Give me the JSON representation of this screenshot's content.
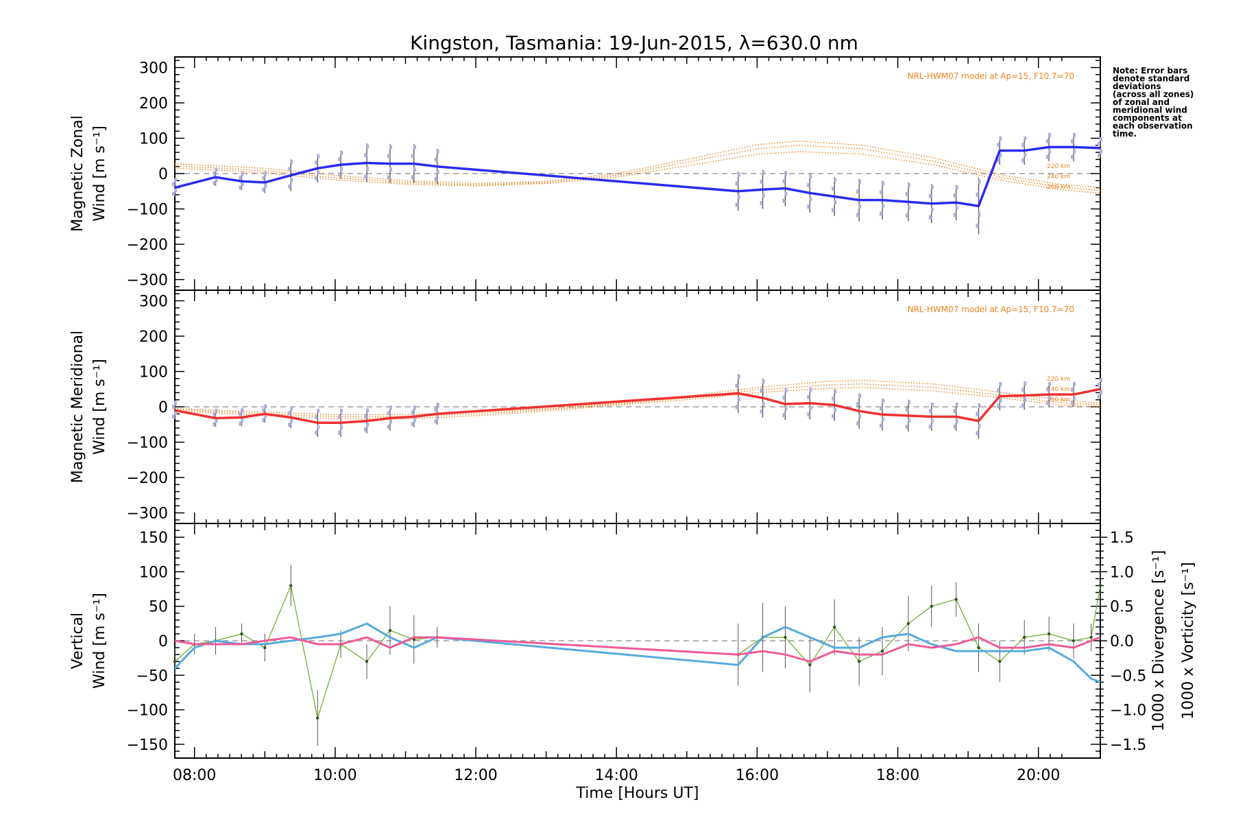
{
  "title": "Kingston, Tasmania: 19-Jun-2015, λ=630.0 nm",
  "note": [
    "Note: Error bars",
    "denote standard",
    "deviations",
    "(across all zones)",
    "of zonal and",
    "meridional wind",
    "components at",
    "each observation",
    "time."
  ],
  "colors": {
    "zonal": "#2b2bf0",
    "meridional": "#f03030",
    "vertical": "#66aa22",
    "divergence": "#55aadd",
    "vorticity": "#f05a96",
    "model": "#f0821e",
    "errorbar": "#555555",
    "scatter": "#aab0e0",
    "zero": "#888888"
  },
  "chart_data": [
    {
      "type": "line",
      "panel": "zonal",
      "ylabel": [
        "Magnetic Zonal",
        "Wind [m s⁻¹]"
      ],
      "ylim": [
        -330,
        330
      ],
      "yticks": [
        300,
        200,
        100,
        0,
        -100,
        -200,
        -300
      ],
      "model_label": "NRL-HWM07 model at Ap=15, F10.7=70",
      "altitude_labels": [
        "220 km",
        "240 km",
        "260 km"
      ],
      "series": [
        {
          "x": [
            7.72,
            8.3,
            8.67,
            9.0,
            9.37,
            9.75,
            10.08,
            10.45,
            10.78,
            11.12,
            11.45,
            15.73,
            16.08,
            16.4,
            16.75,
            17.1,
            17.45,
            17.78,
            18.15,
            18.48,
            18.83,
            19.15,
            19.45,
            19.8,
            20.15,
            20.5,
            20.88
          ],
          "y": [
            -40,
            -10,
            -22,
            -25,
            -5,
            15,
            25,
            30,
            28,
            28,
            20,
            -50,
            -45,
            -42,
            -55,
            -65,
            -75,
            -75,
            -80,
            -85,
            -82,
            -92,
            65,
            65,
            75,
            75,
            72
          ],
          "err": [
            25,
            25,
            25,
            30,
            45,
            40,
            40,
            55,
            55,
            55,
            50,
            55,
            55,
            50,
            55,
            55,
            60,
            55,
            55,
            55,
            50,
            80,
            40,
            40,
            40,
            40,
            30
          ]
        }
      ],
      "model": [
        {
          "x": [
            7.72,
            9.0,
            10.0,
            11.0,
            12.0,
            13.0,
            14.0,
            15.0,
            16.0,
            16.6,
            17.5,
            18.5,
            19.5,
            20.3,
            20.88
          ],
          "y": [
            28,
            15,
            -5,
            -20,
            -28,
            -22,
            0,
            40,
            82,
            92,
            80,
            45,
            -5,
            -30,
            -40
          ]
        },
        {
          "x": [
            7.72,
            9.0,
            10.0,
            11.0,
            12.0,
            13.0,
            14.0,
            15.0,
            16.0,
            16.6,
            17.5,
            18.5,
            19.5,
            20.3,
            20.88
          ],
          "y": [
            22,
            8,
            -12,
            -25,
            -32,
            -25,
            -5,
            32,
            70,
            80,
            70,
            35,
            -12,
            -38,
            -48
          ]
        },
        {
          "x": [
            7.72,
            9.0,
            10.0,
            11.0,
            12.0,
            13.0,
            14.0,
            15.0,
            16.0,
            16.6,
            17.5,
            18.5,
            19.5,
            20.3,
            20.88
          ],
          "y": [
            16,
            2,
            -18,
            -30,
            -35,
            -28,
            -10,
            22,
            55,
            62,
            55,
            25,
            -20,
            -45,
            -56
          ]
        }
      ]
    },
    {
      "type": "line",
      "panel": "meridional",
      "ylabel": [
        "Magnetic Meridional",
        "Wind [m s⁻¹]"
      ],
      "ylim": [
        -330,
        330
      ],
      "yticks": [
        300,
        200,
        100,
        0,
        -100,
        -200,
        -300
      ],
      "model_label": "NRL-HWM07 model at Ap=15, F10.7=70",
      "altitude_labels": [
        "220 km",
        "240 km",
        "260 km"
      ],
      "series": [
        {
          "x": [
            7.72,
            8.3,
            8.67,
            9.0,
            9.37,
            9.75,
            10.08,
            10.45,
            10.78,
            11.12,
            11.45,
            15.73,
            16.08,
            16.4,
            16.75,
            17.1,
            17.45,
            17.78,
            18.15,
            18.48,
            18.83,
            19.15,
            19.45,
            19.8,
            20.15,
            20.5,
            20.88
          ],
          "y": [
            -10,
            -32,
            -30,
            -20,
            -30,
            -45,
            -45,
            -40,
            -32,
            -28,
            -20,
            38,
            25,
            8,
            10,
            5,
            -12,
            -22,
            -25,
            -28,
            -28,
            -40,
            30,
            32,
            35,
            35,
            50
          ],
          "err": [
            25,
            25,
            25,
            25,
            30,
            40,
            40,
            35,
            35,
            30,
            30,
            55,
            55,
            45,
            45,
            45,
            50,
            45,
            45,
            40,
            40,
            50,
            40,
            40,
            35,
            35,
            30
          ]
        }
      ],
      "model": [
        {
          "x": [
            7.72,
            9.0,
            10.0,
            11.0,
            12.0,
            13.0,
            14.0,
            15.0,
            16.0,
            17.0,
            17.5,
            18.5,
            19.5,
            20.3,
            20.88
          ],
          "y": [
            -5,
            -15,
            -22,
            -22,
            -15,
            -5,
            10,
            30,
            55,
            72,
            75,
            65,
            40,
            20,
            10
          ]
        },
        {
          "x": [
            7.72,
            9.0,
            10.0,
            11.0,
            12.0,
            13.0,
            14.0,
            15.0,
            16.0,
            17.0,
            17.5,
            18.5,
            19.5,
            20.3,
            20.88
          ],
          "y": [
            -8,
            -20,
            -28,
            -28,
            -20,
            -8,
            8,
            25,
            48,
            62,
            65,
            55,
            32,
            12,
            5
          ]
        },
        {
          "x": [
            7.72,
            9.0,
            10.0,
            11.0,
            12.0,
            13.0,
            14.0,
            15.0,
            16.0,
            17.0,
            17.5,
            18.5,
            19.5,
            20.3,
            20.88
          ],
          "y": [
            -12,
            -25,
            -34,
            -34,
            -25,
            -12,
            5,
            20,
            40,
            52,
            55,
            45,
            25,
            5,
            0
          ]
        }
      ]
    },
    {
      "type": "line",
      "panel": "vertical",
      "xlabel": "Time [Hours UT]",
      "ylabel": [
        "Vertical",
        "Wind [m s⁻¹]"
      ],
      "ylim": [
        -170,
        170
      ],
      "yticks": [
        150,
        100,
        50,
        0,
        -50,
        -100,
        -150
      ],
      "y2label_divergence": "1000 x Divergence [s⁻¹]",
      "y2label_vorticity": "1000 x Vorticity [s⁻¹]",
      "y2lim": [
        -1.7,
        1.7
      ],
      "y2ticks": [
        1.5,
        1.0,
        0.5,
        0.0,
        -0.5,
        -1.0,
        -1.5
      ],
      "xlim": [
        7.72,
        20.88
      ],
      "xticks": [
        "08:00",
        "10:00",
        "12:00",
        "14:00",
        "16:00",
        "18:00",
        "20:00"
      ],
      "xtick_values": [
        8,
        10,
        12,
        14,
        16,
        18,
        20
      ],
      "series": [
        {
          "name": "Vertical Wind",
          "x": [
            7.72,
            8.0,
            8.3,
            8.67,
            9.0,
            9.37,
            9.75,
            10.08,
            10.45,
            10.78,
            11.12,
            11.45,
            15.73,
            16.08,
            16.4,
            16.75,
            17.1,
            17.45,
            17.78,
            18.15,
            18.48,
            18.83,
            19.15,
            19.45,
            19.8,
            20.15,
            20.5,
            20.75,
            20.88
          ],
          "y": [
            -30,
            -5,
            0,
            10,
            -10,
            80,
            -112,
            -5,
            -30,
            15,
            2,
            5,
            -20,
            5,
            5,
            -35,
            20,
            -30,
            -15,
            25,
            50,
            60,
            -10,
            -30,
            5,
            10,
            0,
            5,
            80
          ],
          "err": [
            20,
            15,
            20,
            15,
            20,
            30,
            40,
            20,
            25,
            35,
            35,
            15,
            45,
            50,
            45,
            40,
            40,
            35,
            35,
            40,
            30,
            25,
            35,
            30,
            25,
            25,
            25,
            20,
            30
          ]
        },
        {
          "name": "Divergence",
          "x": [
            7.72,
            8.0,
            8.3,
            8.67,
            9.0,
            9.37,
            9.75,
            10.08,
            10.45,
            10.78,
            11.12,
            11.45,
            15.73,
            16.08,
            16.4,
            16.75,
            17.1,
            17.45,
            17.78,
            18.15,
            18.48,
            18.83,
            19.15,
            19.45,
            19.8,
            20.15,
            20.5,
            20.75,
            20.88
          ],
          "y": [
            -0.4,
            -0.1,
            0.0,
            -0.05,
            -0.05,
            0.0,
            0.05,
            0.1,
            0.25,
            0.05,
            -0.1,
            0.05,
            -0.35,
            0.05,
            0.2,
            0.05,
            -0.1,
            -0.1,
            0.05,
            0.1,
            -0.05,
            -0.15,
            -0.15,
            -0.15,
            -0.15,
            -0.1,
            -0.3,
            -0.55,
            -0.6
          ]
        },
        {
          "name": "Vorticity",
          "x": [
            7.72,
            8.0,
            8.3,
            8.67,
            9.0,
            9.37,
            9.75,
            10.08,
            10.45,
            10.78,
            11.12,
            11.45,
            15.73,
            16.08,
            16.4,
            16.75,
            17.1,
            17.45,
            17.78,
            18.15,
            18.48,
            18.83,
            19.15,
            19.45,
            19.8,
            20.15,
            20.5,
            20.75,
            20.88
          ],
          "y": [
            0.0,
            -0.05,
            -0.05,
            -0.05,
            0.0,
            0.05,
            -0.05,
            -0.05,
            0.05,
            -0.1,
            0.05,
            0.05,
            -0.2,
            -0.15,
            -0.2,
            -0.3,
            -0.15,
            -0.2,
            -0.2,
            -0.05,
            -0.1,
            -0.05,
            0.05,
            -0.1,
            -0.1,
            -0.05,
            -0.1,
            0.0,
            0.05
          ]
        }
      ]
    }
  ]
}
